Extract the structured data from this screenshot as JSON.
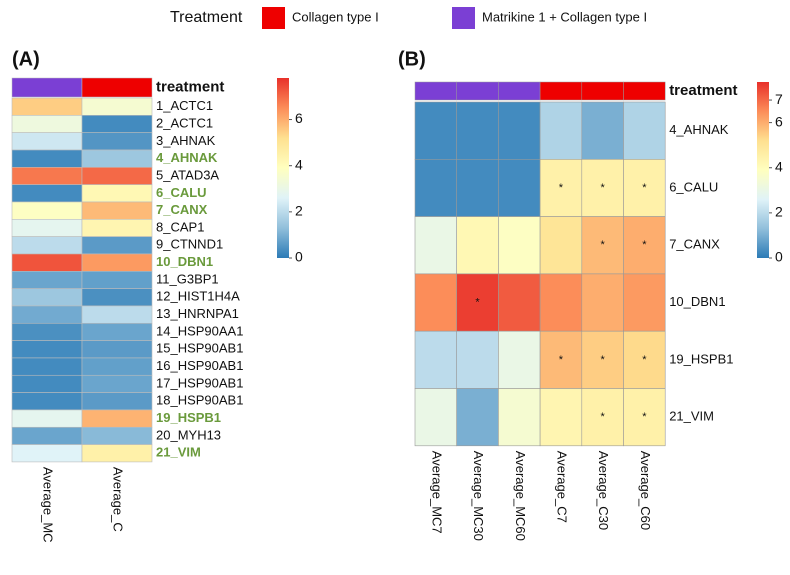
{
  "legend": {
    "title": "Treatment",
    "entries": [
      {
        "name": "Collagen type I",
        "color": "#ee0000"
      },
      {
        "name": "Matrikine 1 + Collagen type I",
        "color": "#7b3fd4"
      }
    ]
  },
  "chart_data": [
    {
      "type": "heatmap",
      "panel_label": "(A)",
      "annotation_label": "treatment",
      "columns": [
        "Average_MC",
        "Average_C"
      ],
      "column_colors": [
        "#7b3fd4",
        "#ee0000"
      ],
      "rows": [
        "1_ACTC1",
        "2_ACTC1",
        "3_AHNAK",
        "4_AHNAK",
        "5_ATAD3A",
        "6_CALU",
        "7_CANX",
        "8_CAP1",
        "9_CTNND1",
        "10_DBN1",
        "11_G3BP1",
        "12_HIST1H4A",
        "13_HNRNPA1",
        "14_HSP90AA1",
        "15_HSP90AB1",
        "16_HSP90AB1",
        "17_HSP90AB1",
        "18_HSP90AB1",
        "19_HSPB1",
        "20_MYH13",
        "21_VIM"
      ],
      "highlight_rows": [
        3,
        5,
        6,
        9,
        18,
        20
      ],
      "highlight_color": "#6a9a3c",
      "values": [
        [
          5.5,
          3.5
        ],
        [
          3.2,
          0.3
        ],
        [
          2.3,
          0.5
        ],
        [
          0.3,
          1.5
        ],
        [
          6.8,
          7.0
        ],
        [
          0.3,
          4.2
        ],
        [
          3.8,
          5.8
        ],
        [
          2.8,
          4.3
        ],
        [
          2.0,
          0.6
        ],
        [
          7.3,
          6.3
        ],
        [
          0.8,
          0.7
        ],
        [
          1.5,
          0.4
        ],
        [
          0.9,
          2.0
        ],
        [
          0.4,
          0.8
        ],
        [
          0.3,
          0.6
        ],
        [
          0.3,
          0.7
        ],
        [
          0.3,
          0.8
        ],
        [
          0.3,
          0.6
        ],
        [
          2.8,
          5.9
        ],
        [
          0.8,
          1.2
        ],
        [
          2.6,
          4.5
        ]
      ],
      "zlim": [
        0,
        7.8
      ],
      "zticks": [
        0,
        2,
        4,
        6
      ],
      "colors": [
        "#2c7bb6",
        "#91bfdb",
        "#e0f3f8",
        "#ffffbf",
        "#fee090",
        "#fc8d59",
        "#e8302a"
      ]
    },
    {
      "type": "heatmap",
      "panel_label": "(B)",
      "annotation_label": "treatment",
      "columns": [
        "Average_MC7",
        "Average_MC30",
        "Average_MC60",
        "Average_C7",
        "Average_C30",
        "Average_C60"
      ],
      "column_colors": [
        "#7b3fd4",
        "#7b3fd4",
        "#7b3fd4",
        "#ee0000",
        "#ee0000",
        "#ee0000"
      ],
      "rows": [
        "4_AHNAK",
        "6_CALU",
        "7_CANX",
        "10_DBN1",
        "19_HSPB1",
        "21_VIM"
      ],
      "values": [
        [
          0.3,
          0.3,
          0.3,
          1.8,
          1.0,
          1.8
        ],
        [
          0.3,
          0.3,
          0.3,
          4.5,
          4.5,
          4.5
        ],
        [
          3.0,
          4.2,
          3.8,
          5.0,
          5.8,
          6.0
        ],
        [
          6.5,
          7.6,
          7.2,
          6.5,
          6.0,
          6.3
        ],
        [
          2.0,
          2.0,
          3.0,
          5.8,
          5.5,
          5.3
        ],
        [
          3.0,
          1.0,
          3.5,
          4.3,
          4.5,
          4.5
        ]
      ],
      "cell_labels": [
        [
          null,
          null,
          null,
          null,
          null,
          null
        ],
        [
          null,
          null,
          null,
          "*",
          "*",
          "*"
        ],
        [
          null,
          null,
          null,
          null,
          "*",
          "*"
        ],
        [
          null,
          "*",
          null,
          null,
          null,
          null
        ],
        [
          null,
          null,
          null,
          "*",
          "*",
          "*"
        ],
        [
          null,
          null,
          null,
          null,
          "*",
          "*"
        ]
      ],
      "zlim": [
        0,
        7.8
      ],
      "zticks": [
        0,
        2,
        4,
        6,
        7
      ],
      "colors": [
        "#2c7bb6",
        "#91bfdb",
        "#e0f3f8",
        "#ffffbf",
        "#fee090",
        "#fc8d59",
        "#e8302a"
      ]
    }
  ]
}
